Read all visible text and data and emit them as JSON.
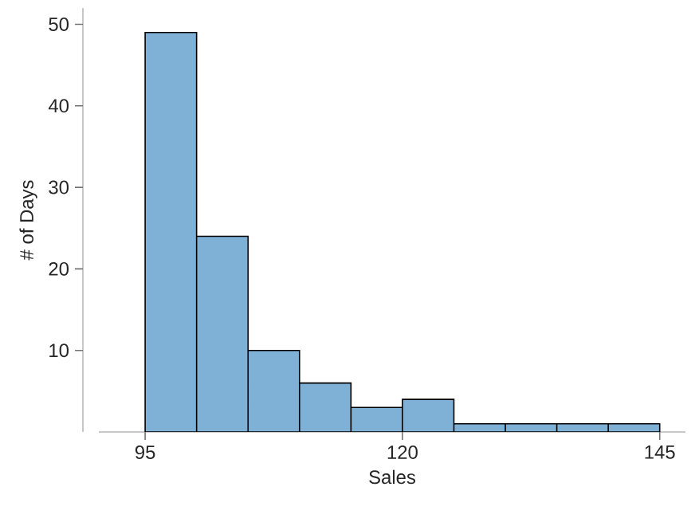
{
  "chart_data": {
    "type": "histogram",
    "xlabel": "Sales",
    "ylabel": "# of Days",
    "bins": [
      95,
      100,
      105,
      110,
      115,
      120,
      125,
      130,
      135,
      140,
      145
    ],
    "values": [
      49,
      24,
      10,
      6,
      3,
      4,
      1,
      1,
      1,
      1
    ],
    "color": "#7fb1d7",
    "xlim": [
      90.5,
      147.5
    ],
    "ylim": [
      0,
      52
    ],
    "xticks": [
      95,
      120,
      145
    ],
    "yticks": [
      10,
      20,
      30,
      40,
      50
    ],
    "grid": false
  }
}
